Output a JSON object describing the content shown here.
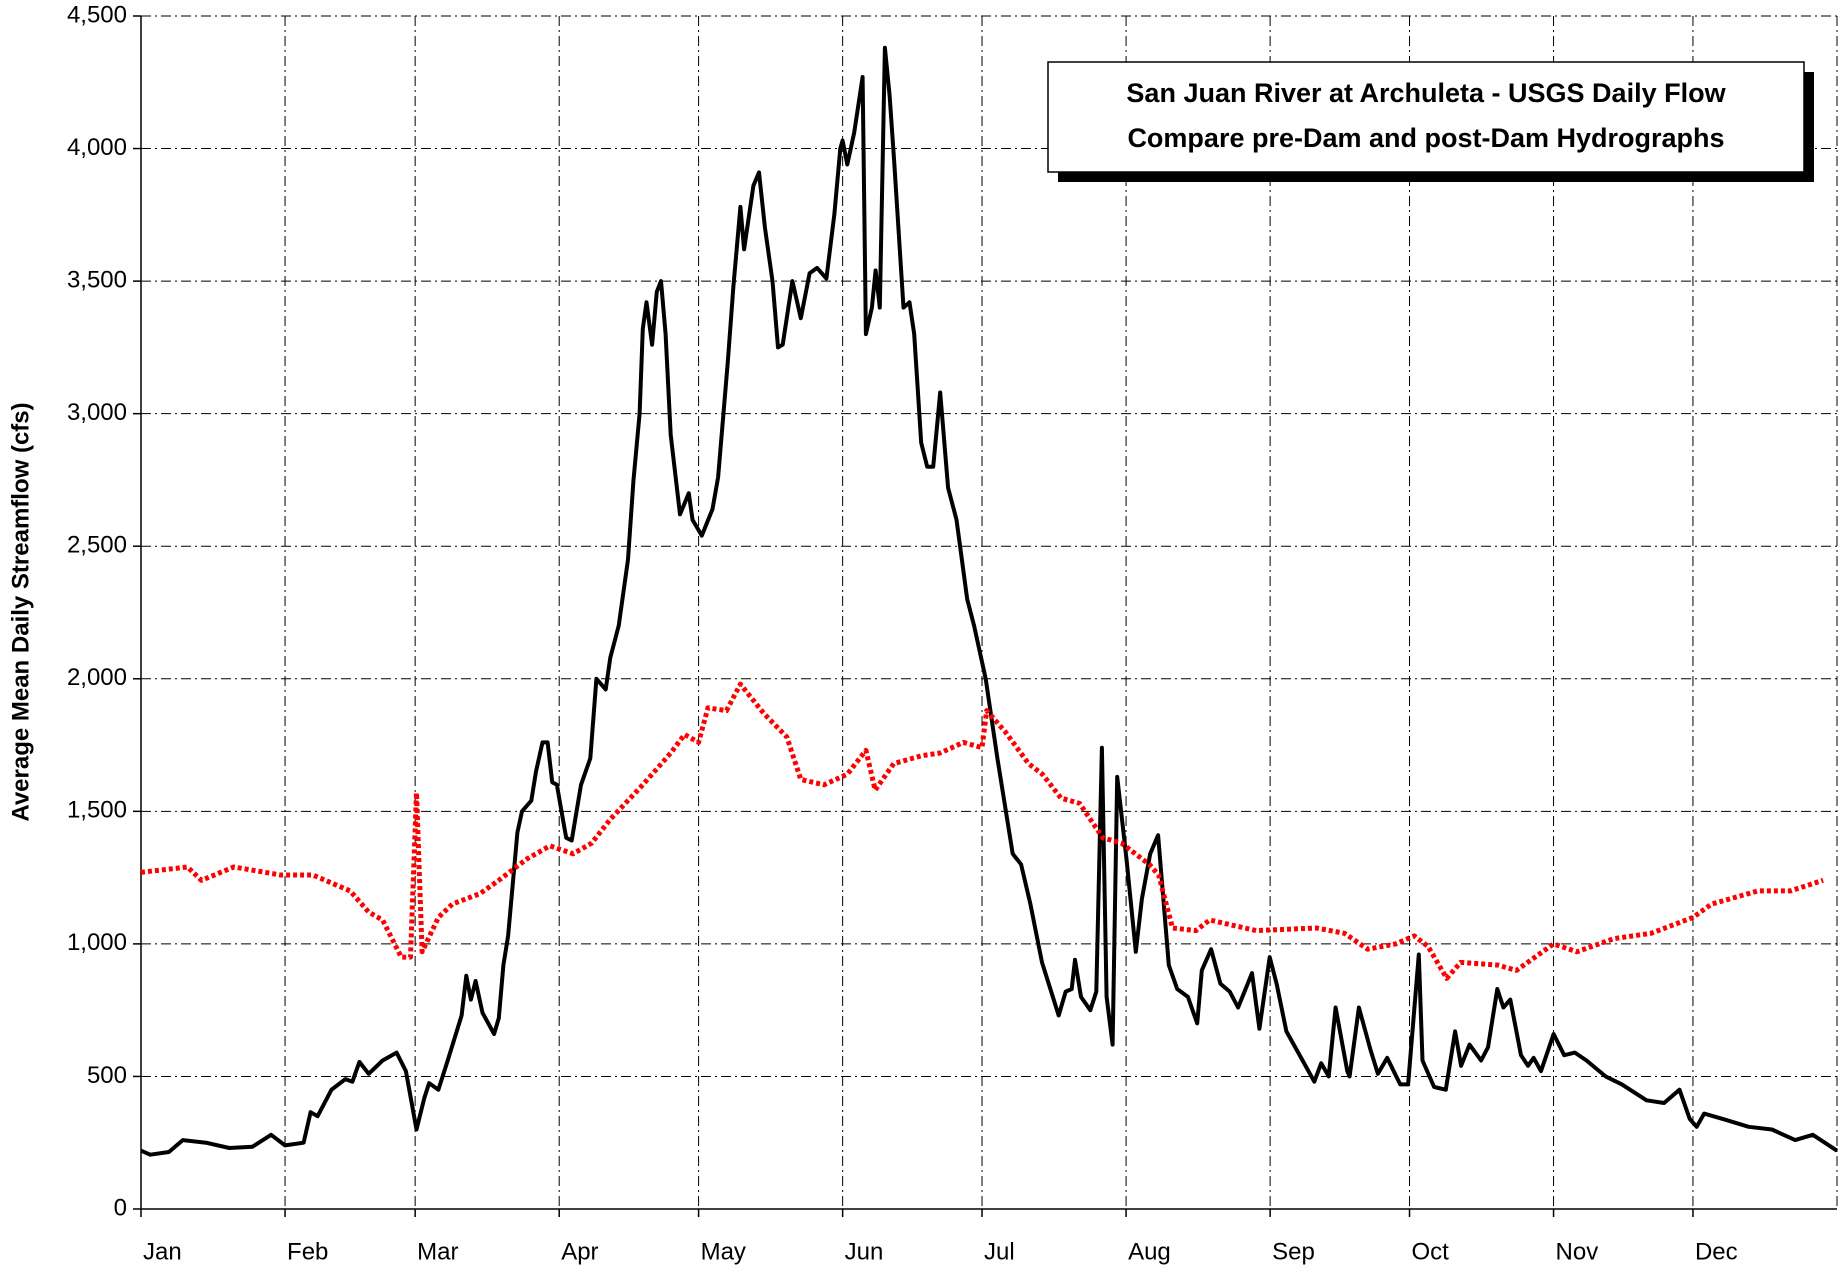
{
  "chart_data": {
    "type": "line",
    "title": "San Juan River at Archuleta - USGS Daily Flow",
    "subtitle": "Compare pre-Dam and post-Dam Hydrographs",
    "y_label": "Average Mean Daily Streamflow (cfs)",
    "xlim": [
      0,
      365
    ],
    "xticks": [
      {
        "value": 0,
        "label": "Jan"
      },
      {
        "value": 31,
        "label": "Feb"
      },
      {
        "value": 59,
        "label": "Mar"
      },
      {
        "value": 90,
        "label": "Apr"
      },
      {
        "value": 120,
        "label": "May"
      },
      {
        "value": 151,
        "label": "Jun"
      },
      {
        "value": 181,
        "label": "Jul"
      },
      {
        "value": 212,
        "label": "Aug"
      },
      {
        "value": 243,
        "label": "Sep"
      },
      {
        "value": 273,
        "label": "Oct"
      },
      {
        "value": 304,
        "label": "Nov"
      },
      {
        "value": 334,
        "label": "Dec"
      }
    ],
    "ylim": [
      0,
      4500
    ],
    "yticks": [
      0,
      500,
      {
        "value": 1000,
        "label": "1,000"
      },
      {
        "value": 1500,
        "label": "1,500"
      },
      {
        "value": 2000,
        "label": "2,000"
      },
      {
        "value": 2500,
        "label": "2,500"
      },
      {
        "value": 3000,
        "label": "3,000"
      },
      {
        "value": 3500,
        "label": "3,500"
      },
      {
        "value": 4000,
        "label": "4,000"
      },
      {
        "value": 4500,
        "label": "4,500"
      }
    ],
    "grid": true,
    "series": [
      {
        "color": "#000000",
        "style": "solid",
        "x": [
          0,
          2,
          6,
          9,
          14,
          19,
          24,
          28,
          31,
          35,
          36.5,
          38,
          41,
          44,
          45.5,
          47,
          49,
          52,
          55,
          57,
          59.3,
          61,
          62,
          64,
          66,
          69,
          70,
          71,
          72,
          73.5,
          76,
          77,
          78,
          79,
          81,
          82,
          84,
          85,
          86.4,
          87.5,
          88.5,
          89.5,
          90.5,
          91.5,
          92.7,
          94.7,
          96.7,
          98,
          100,
          101,
          102.8,
          104.8,
          106,
          107.3,
          108,
          108.8,
          110,
          111,
          111.9,
          112.9,
          114,
          116,
          117.9,
          118.7,
          120.7,
          123,
          124.2,
          126.3,
          127.5,
          129,
          129.8,
          131.8,
          133,
          134.3,
          135.9,
          137.1,
          138.1,
          140.2,
          142,
          143.9,
          145.5,
          147.5,
          149.2,
          150.5,
          151,
          152,
          153.5,
          155.3,
          156,
          157.3,
          158.1,
          159,
          160.1,
          161.1,
          162.1,
          164.1,
          165.4,
          166.4,
          167.9,
          169.2,
          170.5,
          172,
          173.7,
          175.5,
          177.8,
          179.3,
          181.8,
          184.3,
          187.6,
          189.4,
          191.4,
          193.9,
          197.5,
          199,
          200.3,
          201,
          202.3,
          204.3,
          205.6,
          206.8,
          207.8,
          209.1,
          210.1,
          212.1,
          214.1,
          215.4,
          217.2,
          218.9,
          221.2,
          223,
          225.3,
          227.3,
          228.3,
          230.3,
          232.3,
          234.3,
          236.1,
          239.1,
          240.7,
          242.9,
          244.4,
          246.5,
          250,
          252.5,
          254,
          255.6,
          257.1,
          259.6,
          260.1,
          262.1,
          264.6,
          266.2,
          268.2,
          271,
          272.7,
          275,
          275.8,
          278.3,
          280.8,
          282.8,
          284.1,
          285.9,
          288.4,
          289.9,
          291.9,
          293.2,
          294.7,
          297,
          298.5,
          299.7,
          301.3,
          304,
          306.3,
          308.6,
          311.1,
          315.2,
          318.7,
          324,
          327.8,
          331.1,
          333.3,
          334.8,
          336.4,
          340.4,
          346,
          351,
          356,
          359.8,
          365
        ],
        "values": [
          220,
          205,
          215,
          260,
          250,
          230,
          235,
          280,
          240,
          250,
          365,
          350,
          450,
          490,
          480,
          555,
          510,
          560,
          590,
          520,
          300,
          420,
          475,
          450,
          560,
          730,
          880,
          790,
          860,
          740,
          660,
          720,
          920,
          1030,
          1420,
          1500,
          1540,
          1650,
          1760,
          1760,
          1610,
          1600,
          1500,
          1400,
          1390,
          1600,
          1700,
          2000,
          1960,
          2080,
          2200,
          2450,
          2750,
          3000,
          3320,
          3420,
          3260,
          3460,
          3500,
          3300,
          2920,
          2620,
          2700,
          2600,
          2540,
          2640,
          2760,
          3200,
          3480,
          3780,
          3620,
          3860,
          3910,
          3700,
          3500,
          3250,
          3260,
          3500,
          3360,
          3530,
          3550,
          3510,
          3750,
          4000,
          4030,
          3940,
          4060,
          4270,
          3300,
          3400,
          3540,
          3400,
          4380,
          4200,
          3950,
          3400,
          3420,
          3300,
          2890,
          2800,
          2800,
          3080,
          2720,
          2600,
          2300,
          2200,
          2000,
          1700,
          1340,
          1300,
          1150,
          930,
          730,
          820,
          830,
          940,
          800,
          750,
          820,
          1740,
          800,
          620,
          1630,
          1320,
          970,
          1170,
          1340,
          1410,
          920,
          830,
          800,
          700,
          900,
          980,
          850,
          820,
          760,
          890,
          680,
          950,
          850,
          670,
          560,
          480,
          550,
          500,
          760,
          520,
          500,
          760,
          600,
          510,
          570,
          470,
          470,
          960,
          560,
          460,
          450,
          670,
          540,
          620,
          560,
          610,
          830,
          760,
          790,
          580,
          540,
          570,
          520,
          660,
          580,
          590,
          560,
          500,
          470,
          410,
          400,
          450,
          340,
          310,
          360,
          340,
          310,
          300,
          260,
          280,
          220
        ]
      },
      {
        "color": "#ff0000",
        "style": "dotted",
        "x": [
          0,
          10,
          13,
          20,
          30,
          37,
          45,
          49,
          52,
          56,
          58,
          59.3,
          60.5,
          64,
          67,
          73,
          77,
          83,
          88,
          93,
          97,
          101,
          108,
          114,
          117,
          120,
          122,
          126,
          129,
          134,
          139,
          142,
          147,
          152,
          156,
          158,
          162,
          168,
          172,
          177,
          181,
          182,
          186,
          191,
          194,
          198,
          202,
          207,
          211,
          217,
          219,
          222,
          227,
          230,
          240,
          253,
          259,
          264,
          270,
          274,
          277,
          281,
          284,
          292,
          296,
          304,
          309,
          317,
          325,
          334,
          338,
          348,
          355,
          362
        ],
        "values": [
          1270,
          1290,
          1240,
          1290,
          1260,
          1260,
          1200,
          1120,
          1090,
          950,
          950,
          1570,
          970,
          1100,
          1150,
          1190,
          1240,
          1320,
          1370,
          1340,
          1380,
          1470,
          1600,
          1720,
          1790,
          1760,
          1890,
          1880,
          1980,
          1870,
          1780,
          1620,
          1600,
          1640,
          1730,
          1580,
          1680,
          1710,
          1720,
          1760,
          1740,
          1880,
          1800,
          1680,
          1640,
          1550,
          1530,
          1400,
          1380,
          1300,
          1260,
          1060,
          1050,
          1090,
          1050,
          1060,
          1040,
          980,
          1000,
          1030,
          990,
          870,
          930,
          920,
          900,
          1000,
          970,
          1020,
          1040,
          1100,
          1150,
          1200,
          1200,
          1240
        ]
      }
    ]
  }
}
